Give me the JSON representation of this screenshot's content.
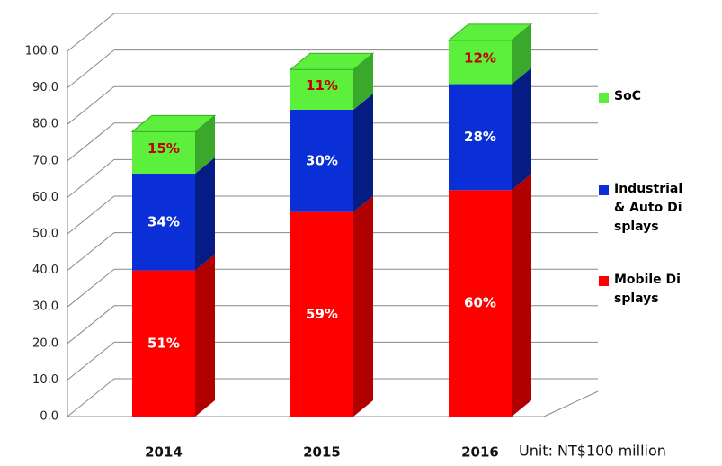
{
  "chart_data": {
    "type": "bar3d_stacked",
    "categories": [
      "2014",
      "2015",
      "2016"
    ],
    "series": [
      {
        "name": "Mobile Displays",
        "color": "#ff0000",
        "side_color": "#b00000",
        "label_color": "#ffffff",
        "values": [
          40,
          56,
          62
        ],
        "labels": [
          "51%",
          "59%",
          "60%"
        ]
      },
      {
        "name": "Industrial & Auto Displays",
        "color": "#0a2fd6",
        "side_color": "#061c85",
        "label_color": "#ffffff",
        "values": [
          26.5,
          28,
          29
        ],
        "labels": [
          "34%",
          "30%",
          "28%"
        ]
      },
      {
        "name": "SoC",
        "color": "#5cf03c",
        "side_color": "#3aa82a",
        "label_color": "#c00000",
        "values": [
          11.5,
          11,
          12
        ],
        "labels": [
          "15%",
          "11%",
          "12%"
        ]
      }
    ],
    "ylim": [
      0,
      100
    ],
    "yticks": [
      {
        "value": 0,
        "label": "0.0"
      },
      {
        "value": 10,
        "label": "10.0"
      },
      {
        "value": 20,
        "label": "20.0"
      },
      {
        "value": 30,
        "label": "30.0"
      },
      {
        "value": 40,
        "label": "40.0"
      },
      {
        "value": 50,
        "label": "50.0"
      },
      {
        "value": 60,
        "label": "60.0"
      },
      {
        "value": 70,
        "label": "70.0"
      },
      {
        "value": 80,
        "label": "80.0"
      },
      {
        "value": 90,
        "label": "90.0"
      },
      {
        "value": 100,
        "label": "100.0"
      }
    ],
    "grid": true,
    "unit_note": "Unit: NT$100 million"
  }
}
